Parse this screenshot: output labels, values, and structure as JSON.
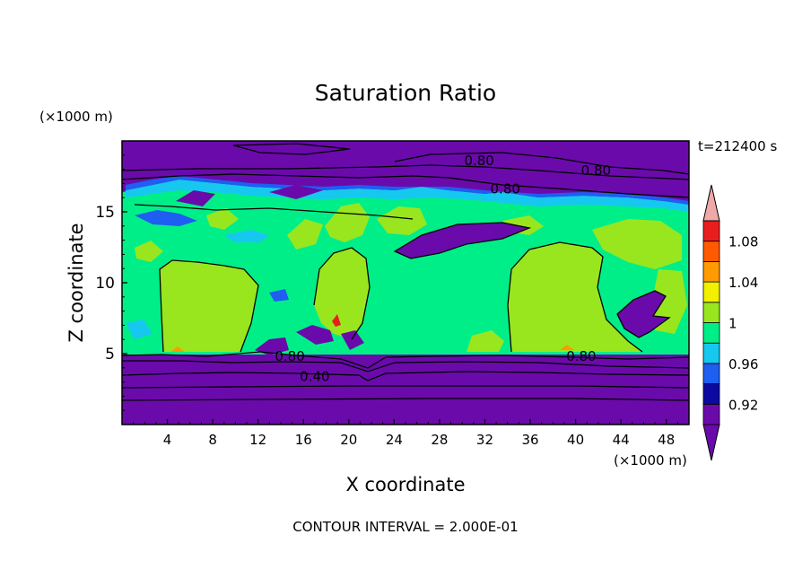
{
  "chart_data": {
    "type": "heatmap",
    "title": "Saturation Ratio",
    "time_label": "t=212400 s",
    "xlabel": "X coordinate",
    "ylabel": "Z coordinate",
    "x_unit": "(×1000 m)",
    "y_unit": "(×1000 m)",
    "footer": "CONTOUR INTERVAL = 2.000E-01",
    "xlim": [
      0,
      50
    ],
    "ylim": [
      0,
      20
    ],
    "x_ticks": [
      4,
      8,
      12,
      16,
      20,
      24,
      28,
      32,
      36,
      40,
      44,
      48
    ],
    "y_ticks": [
      5,
      10,
      15
    ],
    "colorbar": {
      "levels": [
        0.9,
        0.92,
        0.94,
        0.96,
        0.98,
        1.0,
        1.02,
        1.04,
        1.06,
        1.08,
        1.1
      ],
      "colors": [
        "#6a0aab",
        "#0a0aa0",
        "#1e5ef0",
        "#16c8f0",
        "#00ee88",
        "#99e61f",
        "#f0f000",
        "#ff9a00",
        "#ff5a00",
        "#e81e1e",
        "#f0a8a8"
      ],
      "tick_labels": [
        "0.92",
        "0.96",
        "1",
        "1.04",
        "1.08"
      ],
      "tick_values": [
        0.92,
        0.96,
        1.0,
        1.04,
        1.08
      ]
    },
    "contour_labels": [
      {
        "text": "0.80",
        "x": 31.5,
        "y": 18.6
      },
      {
        "text": "0.80",
        "x": 41.8,
        "y": 17.9
      },
      {
        "text": "0.80",
        "x": 33.8,
        "y": 16.6
      },
      {
        "text": "0.80",
        "x": 14.8,
        "y": 4.8
      },
      {
        "text": "0.40",
        "x": 17.0,
        "y": 3.4
      },
      {
        "text": "0.80",
        "x": 40.5,
        "y": 4.8
      }
    ]
  }
}
